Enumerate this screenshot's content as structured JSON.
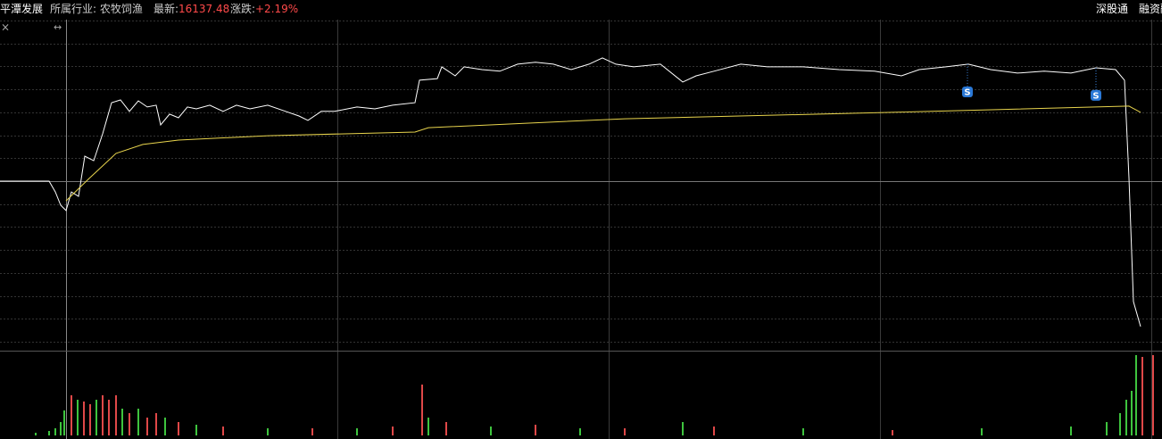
{
  "header": {
    "name": "平潭发展",
    "industry": "所属行业: 农牧饲渔",
    "latest_label": "最新:",
    "latest": "16137.48",
    "change_label": "涨跌:",
    "change": "+2.19%",
    "links": [
      "深股通",
      "融资融"
    ]
  },
  "chart_data": [
    {
      "type": "line",
      "xlim": [
        0,
        1302
      ],
      "ylim": [
        -7,
        7
      ],
      "yticks": [
        -7,
        -6,
        -5,
        -4,
        -3,
        -2,
        -1,
        0,
        1,
        2,
        3,
        4,
        5,
        6,
        7
      ],
      "grid": true,
      "series": [
        {
          "color": "#ffffff",
          "x": [
            0,
            55,
            62,
            68,
            74,
            80,
            88,
            95,
            105,
            115,
            125,
            135,
            145,
            155,
            165,
            175,
            180,
            190,
            200,
            210,
            220,
            235,
            250,
            265,
            280,
            300,
            320,
            335,
            345,
            360,
            375,
            400,
            420,
            440,
            465,
            470,
            490,
            495,
            510,
            520,
            540,
            560,
            580,
            600,
            620,
            640,
            660,
            675,
            690,
            710,
            740,
            765,
            780,
            800,
            830,
            860,
            900,
            940,
            980,
            1010,
            1030,
            1060,
            1085,
            1110,
            1140,
            1170,
            1200,
            1228,
            1250,
            1260,
            1265,
            1270,
            1278
          ],
          "values": [
            0,
            0,
            -0.47,
            -1.05,
            -1.28,
            -0.47,
            -0.66,
            1.09,
            0.89,
            2.06,
            3.42,
            3.54,
            3.04,
            3.5,
            3.23,
            3.31,
            2.45,
            2.92,
            2.76,
            3.23,
            3.15,
            3.31,
            3.04,
            3.31,
            3.15,
            3.31,
            3.04,
            2.84,
            2.65,
            3.04,
            3.04,
            3.23,
            3.15,
            3.31,
            3.42,
            4.4,
            4.47,
            4.98,
            4.59,
            4.98,
            4.86,
            4.79,
            5.1,
            5.18,
            5.1,
            4.86,
            5.1,
            5.37,
            5.1,
            4.98,
            5.1,
            4.32,
            4.59,
            4.79,
            5.1,
            4.98,
            4.98,
            4.86,
            4.79,
            4.59,
            4.86,
            4.98,
            5.1,
            4.86,
            4.71,
            4.79,
            4.71,
            4.94,
            4.86,
            4.4,
            0.12,
            -5.25,
            -6.34
          ]
        },
        {
          "color": "#e8d44d",
          "x": [
            74,
            100,
            130,
            160,
            200,
            300,
            465,
            480,
            700,
            1000,
            1265,
            1278
          ],
          "values": [
            -0.86,
            0.12,
            1.21,
            1.6,
            1.79,
            1.98,
            2.14,
            2.33,
            2.72,
            3.0,
            3.27,
            3.0
          ]
        }
      ],
      "markers": [
        {
          "label": "S",
          "x": 1084,
          "values": [
            5.1,
            3.89
          ]
        },
        {
          "label": "S",
          "x": 1228,
          "values": [
            4.94,
            3.74
          ]
        }
      ]
    },
    {
      "type": "bar",
      "xlim": [
        0,
        1302
      ],
      "ylim": [
        0,
        91
      ],
      "x": [
        40,
        55,
        62,
        68,
        72,
        80,
        87,
        94,
        101,
        108,
        115,
        122,
        130,
        137,
        145,
        155,
        165,
        175,
        185,
        200,
        220,
        250,
        300,
        350,
        400,
        440,
        473,
        480,
        500,
        550,
        600,
        650,
        700,
        765,
        800,
        900,
        1000,
        1100,
        1200,
        1240,
        1255,
        1262,
        1268,
        1273,
        1280,
        1292
      ],
      "values": [
        3,
        5,
        8,
        15,
        28,
        45,
        40,
        38,
        35,
        40,
        45,
        40,
        45,
        30,
        25,
        30,
        20,
        25,
        20,
        15,
        12,
        10,
        8,
        8,
        8,
        10,
        57,
        20,
        15,
        10,
        12,
        8,
        8,
        15,
        10,
        8,
        6,
        8,
        10,
        15,
        25,
        40,
        50,
        90,
        88,
        90
      ],
      "colors": [
        "#3ec43e",
        "#3ec43e",
        "#3ec43e",
        "#3ec43e",
        "#3ec43e",
        "#e04848",
        "#3ec43e",
        "#e04848",
        "#e04848",
        "#3ec43e",
        "#e04848",
        "#e04848",
        "#e04848",
        "#3ec43e",
        "#e04848",
        "#3ec43e",
        "#e04848",
        "#e04848",
        "#3ec43e",
        "#e04848",
        "#3ec43e",
        "#e04848",
        "#3ec43e",
        "#e04848",
        "#3ec43e",
        "#e04848",
        "#e04848",
        "#3ec43e",
        "#e04848",
        "#3ec43e",
        "#e04848",
        "#3ec43e",
        "#e04848",
        "#3ec43e",
        "#e04848",
        "#3ec43e",
        "#e04848",
        "#3ec43e",
        "#3ec43e",
        "#3ec43e",
        "#3ec43e",
        "#3ec43e",
        "#3ec43e",
        "#3ec43e",
        "#e04848",
        "#e04848"
      ]
    }
  ]
}
